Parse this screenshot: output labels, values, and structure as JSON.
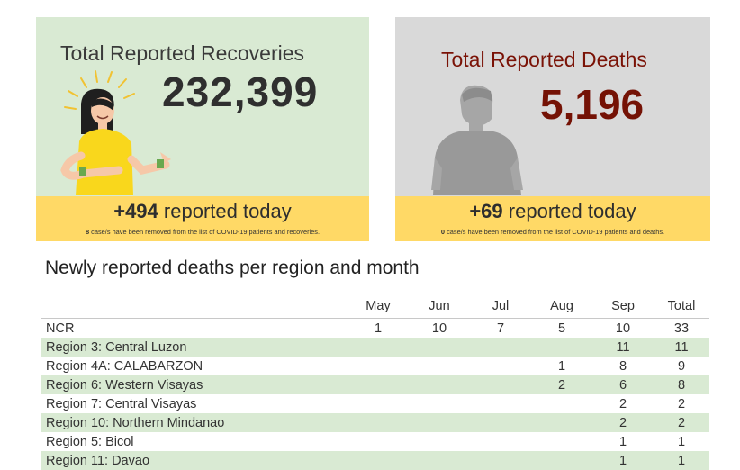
{
  "recoveries": {
    "title": "Total Reported Recoveries",
    "total": "232,399",
    "today_count": "+494",
    "today_text": "reported today",
    "note_count": "8",
    "note_text": "case/s have been removed from the list of COVID-19 patients and recoveries.",
    "bg_color": "#d9ead3",
    "bar_color": "#ffd966"
  },
  "deaths": {
    "title": "Total Reported Deaths",
    "total": "5,196",
    "today_count": "+69",
    "today_text": "reported today",
    "note_count": "0",
    "note_text": "case/s have been removed from the list of COVID-19 patients and deaths.",
    "bg_color": "#d9d9d9",
    "title_color": "#7a1206"
  },
  "table": {
    "title": "Newly reported deaths per region and month",
    "headers": [
      "",
      "May",
      "Jun",
      "Jul",
      "Aug",
      "Sep",
      "Total"
    ],
    "rows": [
      [
        "NCR",
        "1",
        "10",
        "7",
        "5",
        "10",
        "33"
      ],
      [
        "Region 3: Central Luzon",
        "",
        "",
        "",
        "",
        "11",
        "11"
      ],
      [
        "Region 4A: CALABARZON",
        "",
        "",
        "",
        "1",
        "8",
        "9"
      ],
      [
        "Region 6: Western Visayas",
        "",
        "",
        "",
        "2",
        "6",
        "8"
      ],
      [
        "Region 7: Central Visayas",
        "",
        "",
        "",
        "",
        "2",
        "2"
      ],
      [
        "Region 10: Northern Mindanao",
        "",
        "",
        "",
        "",
        "2",
        "2"
      ],
      [
        "Region 5: Bicol",
        "",
        "",
        "",
        "",
        "1",
        "1"
      ],
      [
        "Region 11: Davao",
        "",
        "",
        "",
        "",
        "1",
        "1"
      ]
    ]
  }
}
